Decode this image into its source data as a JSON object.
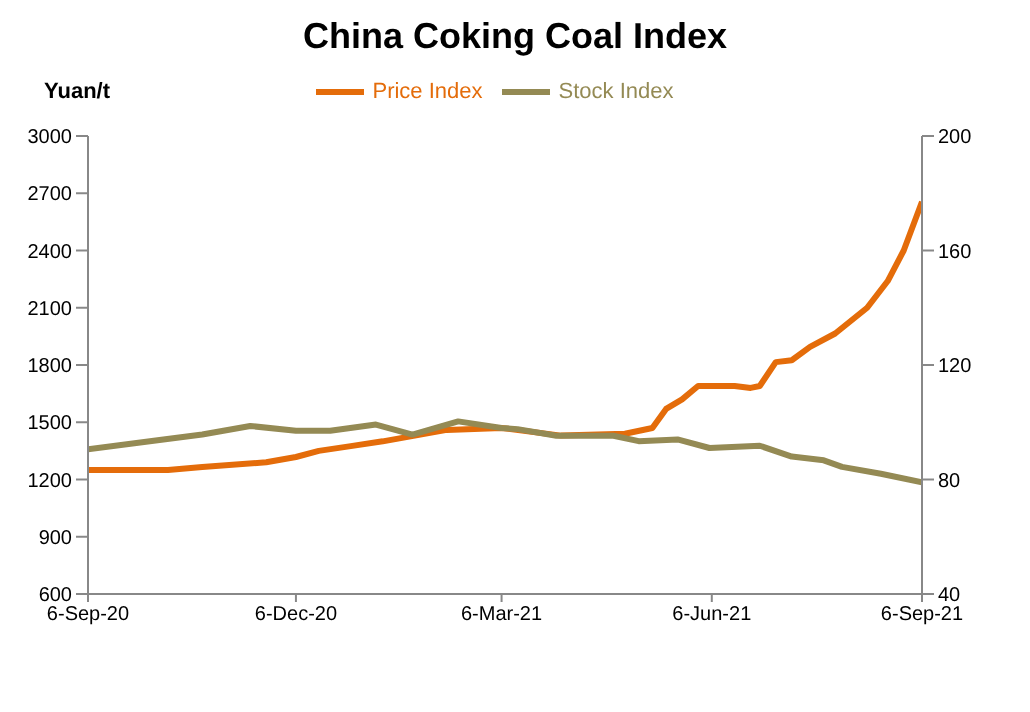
{
  "chart_data": {
    "type": "line",
    "title": "China Coking Coal Index",
    "ylabel": "Yuan/t",
    "xlim": [
      "2020-09-06",
      "2021-09-06"
    ],
    "xticks": [
      {
        "value": "2020-09-06",
        "label": "6-Sep-20"
      },
      {
        "value": "2020-12-06",
        "label": "6-Dec-20"
      },
      {
        "value": "2021-03-06",
        "label": "6-Mar-21"
      },
      {
        "value": "2021-06-06",
        "label": "6-Jun-21"
      },
      {
        "value": "2021-09-06",
        "label": "6-Sep-21"
      }
    ],
    "ylim": [
      600,
      3000
    ],
    "yticks": [
      600,
      900,
      1200,
      1500,
      1800,
      2100,
      2400,
      2700,
      3000
    ],
    "y2lim": [
      40,
      200
    ],
    "y2ticks": [
      40,
      80,
      120,
      160,
      200
    ],
    "legend": "top",
    "marker": "none",
    "line_style": "solid",
    "series": [
      {
        "name": "Price Index",
        "color": "#e46c0a",
        "x": [
          "2020-09-06",
          "2020-10-11",
          "2020-10-26",
          "2020-11-23",
          "2020-12-06",
          "2020-12-16",
          "2020-12-30",
          "2021-01-13",
          "2021-01-27",
          "2021-02-10",
          "2021-03-06",
          "2021-04-01",
          "2021-04-29",
          "2021-05-11",
          "2021-05-17",
          "2021-05-24",
          "2021-05-31",
          "2021-06-16",
          "2021-06-23",
          "2021-06-27",
          "2021-07-04",
          "2021-07-11",
          "2021-07-19",
          "2021-07-30",
          "2021-08-13",
          "2021-08-22",
          "2021-08-29",
          "2021-09-06"
        ],
        "values": [
          1250,
          1250,
          1265,
          1290,
          1318,
          1350,
          1375,
          1400,
          1430,
          1460,
          1470,
          1430,
          1440,
          1470,
          1570,
          1620,
          1690,
          1690,
          1680,
          1690,
          1815,
          1825,
          1895,
          1965,
          2100,
          2240,
          2400,
          2655
        ]
      },
      {
        "name": "Stock Index",
        "color": "#948a54",
        "axis": "y2",
        "x": [
          "2020-09-06",
          "2020-10-09",
          "2020-10-26",
          "2020-11-16",
          "2020-12-06",
          "2020-12-21",
          "2021-01-10",
          "2021-01-26",
          "2021-02-15",
          "2021-03-06",
          "2021-03-13",
          "2021-03-30",
          "2021-04-24",
          "2021-05-05",
          "2021-05-22",
          "2021-06-05",
          "2021-06-27",
          "2021-07-11",
          "2021-07-25",
          "2021-08-02",
          "2021-08-19",
          "2021-09-06"
        ],
        "values": [
          90.6,
          94,
          95.7,
          98.7,
          97,
          97,
          99.2,
          95.7,
          100.3,
          98,
          97.6,
          95.3,
          95.3,
          93.4,
          94,
          91,
          91.8,
          88,
          86.7,
          84.4,
          82,
          79
        ]
      }
    ]
  }
}
